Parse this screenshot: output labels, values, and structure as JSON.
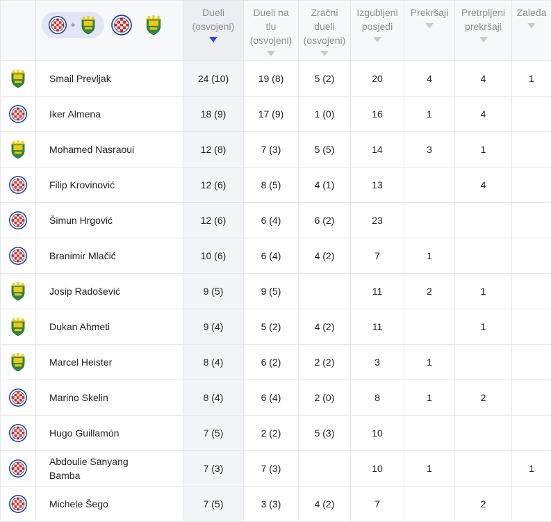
{
  "colors": {
    "accent": "#3046e0",
    "hajduk_red": "#e1251b",
    "hajduk_blue": "#1d3e8f",
    "istra_green": "#2f8a3a",
    "istra_yellow": "#f2c812"
  },
  "icons": {
    "hajduk": "hajduk-crest-icon",
    "istra": "istra-crest-icon"
  },
  "filter": {
    "plus": "+"
  },
  "columns": [
    {
      "key": "duels",
      "lines": [
        "Dueli",
        "(osvojeni)"
      ],
      "sorted": true
    },
    {
      "key": "ground",
      "lines": [
        "Dueli na",
        "tlu",
        "(osvojeni)"
      ],
      "sorted": false
    },
    {
      "key": "aerial",
      "lines": [
        "Zračni",
        "dueli",
        "(osvojeni)"
      ],
      "sorted": false
    },
    {
      "key": "lost",
      "lines": [
        "Izgubljeni",
        "posjedi"
      ],
      "sorted": false
    },
    {
      "key": "fouls",
      "lines": [
        "Prekršaji"
      ],
      "sorted": false
    },
    {
      "key": "fouled",
      "lines": [
        "Pretrpljeni",
        "prekršaji"
      ],
      "sorted": false
    },
    {
      "key": "offsides",
      "lines": [
        "Zaleđa"
      ],
      "sorted": false
    }
  ],
  "rows": [
    {
      "team": "istra",
      "name": "Smail Prevljak",
      "duels": "24 (10)",
      "ground": "19 (8)",
      "aerial": "5 (2)",
      "lost": "20",
      "fouls": "4",
      "fouled": "4",
      "offsides": "1"
    },
    {
      "team": "hajduk",
      "name": "Iker Almena",
      "duels": "18 (9)",
      "ground": "17 (9)",
      "aerial": "1 (0)",
      "lost": "16",
      "fouls": "1",
      "fouled": "4",
      "offsides": ""
    },
    {
      "team": "istra",
      "name": "Mohamed Nasraoui",
      "duels": "12 (8)",
      "ground": "7 (3)",
      "aerial": "5 (5)",
      "lost": "14",
      "fouls": "3",
      "fouled": "1",
      "offsides": ""
    },
    {
      "team": "hajduk",
      "name": "Filip Krovinović",
      "duels": "12 (6)",
      "ground": "8 (5)",
      "aerial": "4 (1)",
      "lost": "13",
      "fouls": "",
      "fouled": "4",
      "offsides": ""
    },
    {
      "team": "hajduk",
      "name": "Šimun Hrgović",
      "duels": "12 (6)",
      "ground": "6 (4)",
      "aerial": "6 (2)",
      "lost": "23",
      "fouls": "",
      "fouled": "",
      "offsides": ""
    },
    {
      "team": "hajduk",
      "name": "Branimir Mlačić",
      "duels": "10 (6)",
      "ground": "6 (4)",
      "aerial": "4 (2)",
      "lost": "7",
      "fouls": "1",
      "fouled": "",
      "offsides": ""
    },
    {
      "team": "istra",
      "name": "Josip Radošević",
      "duels": "9 (5)",
      "ground": "9 (5)",
      "aerial": "",
      "lost": "11",
      "fouls": "2",
      "fouled": "1",
      "offsides": ""
    },
    {
      "team": "istra",
      "name": "Dukan Ahmeti",
      "duels": "9 (4)",
      "ground": "5 (2)",
      "aerial": "4 (2)",
      "lost": "11",
      "fouls": "",
      "fouled": "1",
      "offsides": ""
    },
    {
      "team": "istra",
      "name": "Marcel Heister",
      "duels": "8 (4)",
      "ground": "6 (2)",
      "aerial": "2 (2)",
      "lost": "3",
      "fouls": "1",
      "fouled": "",
      "offsides": ""
    },
    {
      "team": "hajduk",
      "name": "Marino Skelin",
      "duels": "8 (4)",
      "ground": "6 (4)",
      "aerial": "2 (0)",
      "lost": "8",
      "fouls": "1",
      "fouled": "2",
      "offsides": ""
    },
    {
      "team": "hajduk",
      "name": "Hugo Guillamón",
      "duels": "7 (5)",
      "ground": "2 (2)",
      "aerial": "5 (3)",
      "lost": "10",
      "fouls": "",
      "fouled": "",
      "offsides": ""
    },
    {
      "team": "hajduk",
      "name": "Abdoulie Sanyang Bamba",
      "duels": "7 (3)",
      "ground": "7 (3)",
      "aerial": "",
      "lost": "10",
      "fouls": "1",
      "fouled": "",
      "offsides": "1"
    },
    {
      "team": "hajduk",
      "name": "Michele Šego",
      "duels": "7 (5)",
      "ground": "3 (3)",
      "aerial": "4 (2)",
      "lost": "7",
      "fouls": "",
      "fouled": "2",
      "offsides": ""
    }
  ]
}
